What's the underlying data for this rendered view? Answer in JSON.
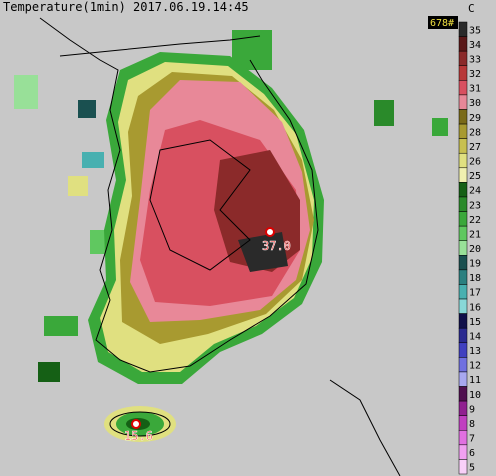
{
  "header": {
    "title": "Temperature(1min) 2017.06.19.14:45",
    "count": "678#",
    "unit": "C"
  },
  "colorbar": {
    "levels": [
      35,
      34,
      33,
      32,
      31,
      30,
      29,
      28,
      27,
      26,
      25,
      24,
      23,
      22,
      21,
      20,
      19,
      18,
      17,
      16,
      15,
      14,
      13,
      12,
      11,
      10,
      9,
      8,
      7,
      6,
      5
    ],
    "colors": [
      "#2a2a2a",
      "#5a1818",
      "#8b2a2a",
      "#b83838",
      "#d85060",
      "#e88898",
      "#7a6a18",
      "#a89a30",
      "#c8c050",
      "#e0e080",
      "#f0f0b0",
      "#156015",
      "#2a8a2a",
      "#3aa83a",
      "#60c860",
      "#98e098",
      "#1a5050",
      "#2a8080",
      "#48b0b0",
      "#88d8d8",
      "#10104a",
      "#2a2a90",
      "#4040c0",
      "#7070e0",
      "#a8a8f0",
      "#501050",
      "#902090",
      "#c040c0",
      "#e070e0",
      "#f0a0f0",
      "#f8d0f8"
    ]
  },
  "stations": [
    {
      "label": "37.0"
    },
    {
      "label": "15.6"
    }
  ]
}
